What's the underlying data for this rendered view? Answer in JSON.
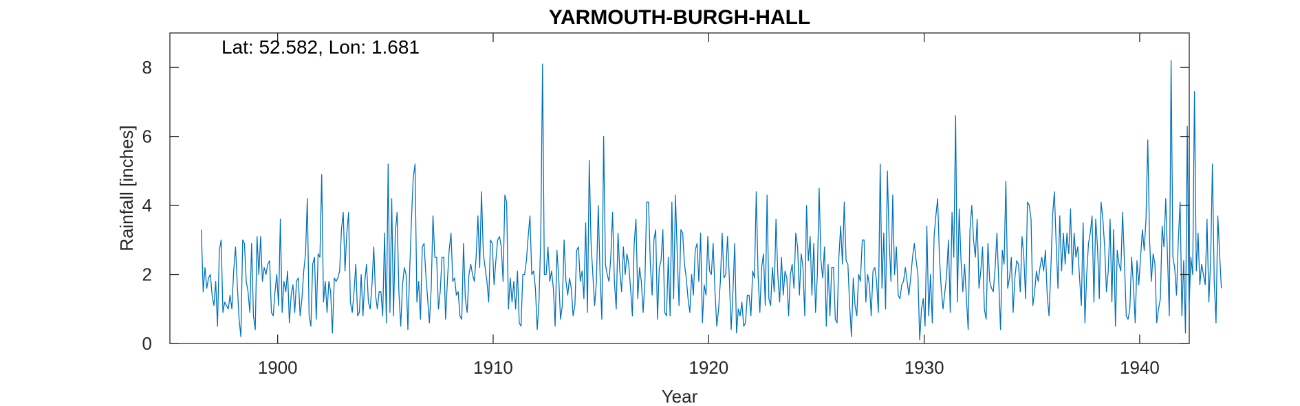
{
  "chart_data": {
    "type": "line",
    "title": "YARMOUTH-BURGH-HALL",
    "annotation": "Lat: 52.582, Lon: 1.681",
    "xlabel": "Year",
    "ylabel": "Rainfall [inches]",
    "xlim": [
      1895,
      1942.3
    ],
    "ylim": [
      0,
      9
    ],
    "xticks": [
      1900,
      1910,
      1920,
      1930,
      1940
    ],
    "yticks": [
      0,
      2,
      4,
      6,
      8
    ],
    "grid": false,
    "line_color": "#0072BD",
    "x_start": 1896.46,
    "x_step": 0.08333,
    "series": [
      {
        "values": [
          3.3,
          1.5,
          2.2,
          1.6,
          1.9,
          2.0,
          1.4,
          1.1,
          1.8,
          0.5,
          2.7,
          3.0,
          0.9,
          1.2,
          1.1,
          1.0,
          1.4,
          1.0,
          2.1,
          2.8,
          1.7,
          0.7,
          0.2,
          3.0,
          2.9,
          1.8,
          1.5,
          0.9,
          2.9,
          0.8,
          0.4,
          3.1,
          2.0,
          3.1,
          1.8,
          2.2,
          2.0,
          2.3,
          2.4,
          0.9,
          0.8,
          1.5,
          2.0,
          1.1,
          3.6,
          0.9,
          1.8,
          1.5,
          2.1,
          0.6,
          1.4,
          1.7,
          0.9,
          1.8,
          1.9,
          0.8,
          1.3,
          2.1,
          2.6,
          4.2,
          0.8,
          0.5,
          2.3,
          2.5,
          0.7,
          2.6,
          2.5,
          4.9,
          1.2,
          1.8,
          0.9,
          1.8,
          1.5,
          0.3,
          1.9,
          1.8,
          1.9,
          2.1,
          3.3,
          3.8,
          2.1,
          3.2,
          3.8,
          1.2,
          0.9,
          1.5,
          2.3,
          0.8,
          0.9,
          2.0,
          0.8,
          1.8,
          2.3,
          1.2,
          1.0,
          1.7,
          2.8,
          1.4,
          1.0,
          1.5,
          1.5,
          0.8,
          3.2,
          0.6,
          5.2,
          0.9,
          4.2,
          0.8,
          3.2,
          3.8,
          1.5,
          0.5,
          1.7,
          2.2,
          2.0,
          0.4,
          2.1,
          3.6,
          4.8,
          5.2,
          1.2,
          1.8,
          0.7,
          2.8,
          2.9,
          2.0,
          1.3,
          0.6,
          1.6,
          3.7,
          2.5,
          2.5,
          1.0,
          1.5,
          2.5,
          2.5,
          0.7,
          1.8,
          2.7,
          3.2,
          1.8,
          1.9,
          1.4,
          1.5,
          0.8,
          0.7,
          2.9,
          1.3,
          0.9,
          2.0,
          2.3,
          2.0,
          1.8,
          2.5,
          3.7,
          2.2,
          4.4,
          2.6,
          2.2,
          1.8,
          1.2,
          3.0,
          2.9,
          1.7,
          2.4,
          3.0,
          3.1,
          2.8,
          1.8,
          4.3,
          4.1,
          1.0,
          1.9,
          1.2,
          1.8,
          1.0,
          2.1,
          0.6,
          0.5,
          2.0,
          2.0,
          2.4,
          3.1,
          3.7,
          2.0,
          2.1,
          1.6,
          0.4,
          1.2,
          3.1,
          8.1,
          2.0,
          2.0,
          2.8,
          1.8,
          2.1,
          1.6,
          0.5,
          2.7,
          1.9,
          0.7,
          1.1,
          3.0,
          1.8,
          1.4,
          1.9,
          1.6,
          0.8,
          1.1,
          2.7,
          2.8,
          1.8,
          2.1,
          1.3,
          3.5,
          0.9,
          5.3,
          2.9,
          2.0,
          1.1,
          1.8,
          4.0,
          2.0,
          0.7,
          6.0,
          2.3,
          2.0,
          1.8,
          2.5,
          3.8,
          1.8,
          1.0,
          3.2,
          2.1,
          1.5,
          2.8,
          2.0,
          2.6,
          2.3,
          1.6,
          0.8,
          2.9,
          3.6,
          1.3,
          2.2,
          1.8,
          0.9,
          1.8,
          4.1,
          4.1,
          2.3,
          1.4,
          3.0,
          3.3,
          0.7,
          2.2,
          2.4,
          3.3,
          0.9,
          0.8,
          2.5,
          0.8,
          4.1,
          1.3,
          4.3,
          2.6,
          1.1,
          3.3,
          3.2,
          2.3,
          1.9,
          1.3,
          0.9,
          2.0,
          1.4,
          2.7,
          2.9,
          1.8,
          3.2,
          0.6,
          1.7,
          1.4,
          3.1,
          2.1,
          2.0,
          2.9,
          1.5,
          0.5,
          1.0,
          1.8,
          3.2,
          1.9,
          2.0,
          3.1,
          1.9,
          0.4,
          1.5,
          2.9,
          0.3,
          1.0,
          0.8,
          1.2,
          0.5,
          0.6,
          1.4,
          1.4,
          0.8,
          2.1,
          1.9,
          4.4,
          2.0,
          0.9,
          2.2,
          2.6,
          1.1,
          4.3,
          1.3,
          1.1,
          2.2,
          1.5,
          3.6,
          2.0,
          1.2,
          2.5,
          1.4,
          2.1,
          1.9,
          0.8,
          2.0,
          2.3,
          1.6,
          3.2,
          2.8,
          1.4,
          2.6,
          2.2,
          0.8,
          4.0,
          2.4,
          3.1,
          1.4,
          2.9,
          0.9,
          2.0,
          4.5,
          2.4,
          1.9,
          2.8,
          0.5,
          2.3,
          0.8,
          2.2,
          2.2,
          0.7,
          0.6,
          2.5,
          3.4,
          2.3,
          4.1,
          2.4,
          2.3,
          1.1,
          0.2,
          1.9,
          1.1,
          0.8,
          2.0,
          1.8,
          3.0,
          3.0,
          1.2,
          2.0,
          1.7,
          0.8,
          2.1,
          2.2,
          1.8,
          0.9,
          5.2,
          1.6,
          3.2,
          1.0,
          5.0,
          3.0,
          1.8,
          4.3,
          2.0,
          2.8,
          1.4,
          1.3,
          1.7,
          1.8,
          2.2,
          1.8,
          1.4,
          1.9,
          2.5,
          2.9,
          2.4,
          2.0,
          0.1,
          1.0,
          1.3,
          0.5,
          3.4,
          0.8,
          2.0,
          0.6,
          3.1,
          3.7,
          4.2,
          2.5,
          1.6,
          1.0,
          1.5,
          2.0,
          3.0,
          0.9,
          3.8,
          2.5,
          6.6,
          1.2,
          3.9,
          2.4,
          1.5,
          2.3,
          1.3,
          0.4,
          3.3,
          4.0,
          3.0,
          2.5,
          3.6,
          1.6,
          2.1,
          2.8,
          1.0,
          0.7,
          2.9,
          1.8,
          1.6,
          1.5,
          2.2,
          3.2,
          1.8,
          0.4,
          2.7,
          2.3,
          4.7,
          1.6,
          1.9,
          2.5,
          0.9,
          1.9,
          2.4,
          2.3,
          1.5,
          3.1,
          2.5,
          1.3,
          4.1,
          4.0,
          3.6,
          1.1,
          1.5,
          2.1,
          1.8,
          2.2,
          2.5,
          2.1,
          2.7,
          1.4,
          0.8,
          2.1,
          3.7,
          4.4,
          2.9,
          1.6,
          3.7,
          2.1,
          3.2,
          2.3,
          3.2,
          2.6,
          3.9,
          2.0,
          3.2,
          2.5,
          2.8,
          1.9,
          1.1,
          3.5,
          0.6,
          2.0,
          2.9,
          3.2,
          3.7,
          1.2,
          3.6,
          2.8,
          1.3,
          4.1,
          3.6,
          2.8,
          1.5,
          2.1,
          3.6,
          1.2,
          3.3,
          0.5,
          2.7,
          2.3,
          2.1,
          3.8,
          2.4,
          0.8,
          0.7,
          1.0,
          2.5,
          1.7,
          0.6,
          2.4,
          1.7,
          2.5,
          3.3,
          2.7,
          3.6,
          5.9,
          3.0,
          1.8,
          2.6,
          2.3,
          0.6,
          1.0,
          1.3,
          3.4,
          2.8,
          4.2,
          2.5,
          0.8,
          8.2,
          2.5,
          2.2,
          1.4,
          3.0,
          4.1,
          0.8,
          2.4,
          0.3,
          6.3,
          1.0,
          2.5,
          2.0,
          7.3,
          2.1,
          3.2,
          1.7,
          2.3,
          2.0,
          1.7,
          3.6,
          1.2,
          2.4,
          5.2,
          1.8,
          0.6,
          3.7,
          2.6,
          1.6
        ]
      }
    ]
  }
}
